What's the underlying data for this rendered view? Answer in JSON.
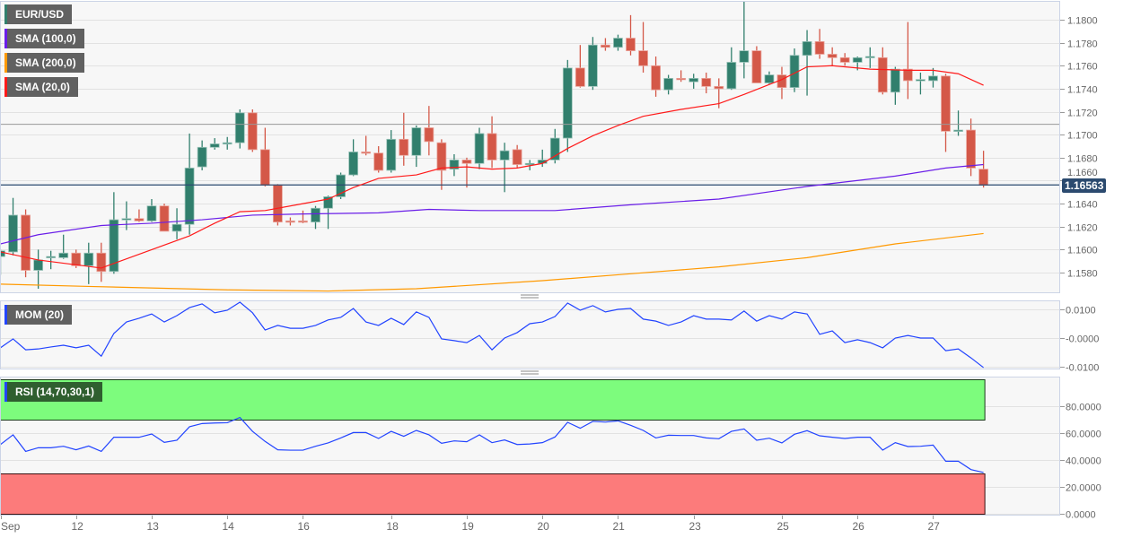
{
  "legend": {
    "symbol": "EUR/USD",
    "sma100": "SMA (100,0)",
    "sma200": "SMA (200,0)",
    "sma20": "SMA (20,0)",
    "mom": "MOM (20)",
    "rsi": "RSI (14,70,30,1)"
  },
  "last_price_label": "1.16563",
  "colors": {
    "up": "#317f6d",
    "down": "#d45848",
    "sma20": "#ff1a1a",
    "sma100": "#6a1ee8",
    "sma200": "#ff9900",
    "indicator": "#2244ff",
    "overbought_zone": "#7dfc7d",
    "oversold_zone": "#fc7b7b",
    "last_price": "#2b4a6f"
  },
  "chart_data": {
    "type": "candlestick",
    "title": "EUR/USD",
    "interval_hours": 4,
    "x_labels": [
      {
        "label": "Sep",
        "index": 0
      },
      {
        "label": "12",
        "index": 6
      },
      {
        "label": "13",
        "index": 12
      },
      {
        "label": "14",
        "index": 18
      },
      {
        "label": "16",
        "index": 24
      },
      {
        "label": "18",
        "index": 31
      },
      {
        "label": "19",
        "index": 37
      },
      {
        "label": "20",
        "index": 43
      },
      {
        "label": "21",
        "index": 49
      },
      {
        "label": "23",
        "index": 55
      },
      {
        "label": "25",
        "index": 62
      },
      {
        "label": "26",
        "index": 68
      },
      {
        "label": "27",
        "index": 74
      }
    ],
    "price_axis": {
      "ylim": [
        1.1566,
        1.1818
      ],
      "ticks": [
        "1.1580",
        "1.1600",
        "1.1620",
        "1.1640",
        "1.1660",
        "1.1680",
        "1.1700",
        "1.1720",
        "1.1740",
        "1.1760",
        "1.1780",
        "1.1800"
      ]
    },
    "last_price": 1.16563,
    "reference_line": 1.1709,
    "candles_ohlc": [
      [
        1.1594,
        1.16,
        1.1578,
        1.1599
      ],
      [
        1.1598,
        1.1645,
        1.1595,
        1.163
      ],
      [
        1.163,
        1.1635,
        1.1576,
        1.1582
      ],
      [
        1.1582,
        1.16,
        1.1566,
        1.1591
      ],
      [
        1.1593,
        1.1599,
        1.1583,
        1.1594
      ],
      [
        1.1593,
        1.1613,
        1.1592,
        1.1597
      ],
      [
        1.1597,
        1.16,
        1.1584,
        1.1586
      ],
      [
        1.1586,
        1.1606,
        1.157,
        1.1597
      ],
      [
        1.1597,
        1.1606,
        1.1572,
        1.1581
      ],
      [
        1.1581,
        1.165,
        1.1579,
        1.1626
      ],
      [
        1.1626,
        1.1642,
        1.1617,
        1.1627
      ],
      [
        1.1627,
        1.1635,
        1.1624,
        1.1625
      ],
      [
        1.1625,
        1.1644,
        1.1624,
        1.1638
      ],
      [
        1.1638,
        1.164,
        1.1616,
        1.1616
      ],
      [
        1.1616,
        1.1636,
        1.1609,
        1.1622
      ],
      [
        1.1622,
        1.1701,
        1.1613,
        1.1671
      ],
      [
        1.1672,
        1.1695,
        1.1669,
        1.1689
      ],
      [
        1.1689,
        1.1697,
        1.1687,
        1.1692
      ],
      [
        1.1692,
        1.1698,
        1.1687,
        1.1693
      ],
      [
        1.1693,
        1.1722,
        1.1688,
        1.1719
      ],
      [
        1.1719,
        1.1722,
        1.1685,
        1.1687
      ],
      [
        1.1687,
        1.1706,
        1.1655,
        1.1656
      ],
      [
        1.1656,
        1.1657,
        1.1621,
        1.1624
      ],
      [
        1.1625,
        1.1628,
        1.1621,
        1.1624
      ],
      [
        1.1625,
        1.1634,
        1.1623,
        1.1624
      ],
      [
        1.1624,
        1.1638,
        1.1618,
        1.1636
      ],
      [
        1.1636,
        1.1647,
        1.1618,
        1.1646
      ],
      [
        1.1646,
        1.1667,
        1.1644,
        1.1665
      ],
      [
        1.1665,
        1.1696,
        1.1664,
        1.1685
      ],
      [
        1.1685,
        1.1699,
        1.1682,
        1.1684
      ],
      [
        1.1684,
        1.169,
        1.1667,
        1.1669
      ],
      [
        1.1669,
        1.1704,
        1.1667,
        1.1696
      ],
      [
        1.1696,
        1.1719,
        1.1673,
        1.1682
      ],
      [
        1.1682,
        1.1708,
        1.1672,
        1.1706
      ],
      [
        1.1706,
        1.1725,
        1.1682,
        1.1694
      ],
      [
        1.1693,
        1.1696,
        1.1652,
        1.1669
      ],
      [
        1.167,
        1.1683,
        1.1664,
        1.1678
      ],
      [
        1.1678,
        1.168,
        1.1654,
        1.1675
      ],
      [
        1.1675,
        1.1706,
        1.167,
        1.1701
      ],
      [
        1.1701,
        1.1716,
        1.1671,
        1.1678
      ],
      [
        1.1678,
        1.1693,
        1.165,
        1.1686
      ],
      [
        1.1687,
        1.1691,
        1.1671,
        1.1674
      ],
      [
        1.1674,
        1.1678,
        1.1669,
        1.1675
      ],
      [
        1.1675,
        1.1687,
        1.1672,
        1.1678
      ],
      [
        1.1678,
        1.1705,
        1.1675,
        1.1697
      ],
      [
        1.1697,
        1.1765,
        1.1685,
        1.1758
      ],
      [
        1.1758,
        1.1778,
        1.1741,
        1.1742
      ],
      [
        1.1742,
        1.1785,
        1.1739,
        1.1778
      ],
      [
        1.1778,
        1.1784,
        1.1773,
        1.1776
      ],
      [
        1.1776,
        1.1787,
        1.1773,
        1.1784
      ],
      [
        1.1784,
        1.1804,
        1.1769,
        1.1773
      ],
      [
        1.1773,
        1.1798,
        1.1754,
        1.176
      ],
      [
        1.176,
        1.1768,
        1.1733,
        1.1739
      ],
      [
        1.1739,
        1.1752,
        1.1735,
        1.1749
      ],
      [
        1.1749,
        1.1756,
        1.1746,
        1.1748
      ],
      [
        1.1746,
        1.1753,
        1.174,
        1.1749
      ],
      [
        1.1749,
        1.1754,
        1.1736,
        1.1742
      ],
      [
        1.1742,
        1.1749,
        1.1723,
        1.174
      ],
      [
        1.174,
        1.1776,
        1.1739,
        1.1763
      ],
      [
        1.1763,
        1.1816,
        1.1749,
        1.1773
      ],
      [
        1.1773,
        1.1777,
        1.1745,
        1.1745
      ],
      [
        1.1745,
        1.1755,
        1.1744,
        1.1752
      ],
      [
        1.1752,
        1.1759,
        1.1731,
        1.1741
      ],
      [
        1.1741,
        1.1775,
        1.1737,
        1.1769
      ],
      [
        1.1769,
        1.1791,
        1.1734,
        1.1781
      ],
      [
        1.1781,
        1.1792,
        1.1766,
        1.177
      ],
      [
        1.177,
        1.1776,
        1.176,
        1.1767
      ],
      [
        1.1767,
        1.1771,
        1.176,
        1.1763
      ],
      [
        1.1763,
        1.1768,
        1.1756,
        1.1767
      ],
      [
        1.1767,
        1.1776,
        1.1758,
        1.1768
      ],
      [
        1.1767,
        1.1776,
        1.1735,
        1.1737
      ],
      [
        1.1737,
        1.1759,
        1.1726,
        1.1757
      ],
      [
        1.1757,
        1.1798,
        1.1731,
        1.1747
      ],
      [
        1.1747,
        1.1754,
        1.1735,
        1.1748
      ],
      [
        1.1747,
        1.1758,
        1.1741,
        1.1751
      ],
      [
        1.1751,
        1.1753,
        1.1685,
        1.1703
      ],
      [
        1.1703,
        1.1721,
        1.1699,
        1.1704
      ],
      [
        1.1704,
        1.1714,
        1.1664,
        1.1671
      ],
      [
        1.167,
        1.1686,
        1.1654,
        1.1656
      ]
    ],
    "sma20": [
      [
        0,
        1.1598
      ],
      [
        3,
        1.1591
      ],
      [
        8,
        1.1584
      ],
      [
        12,
        1.16
      ],
      [
        15,
        1.1612
      ],
      [
        17,
        1.1623
      ],
      [
        19,
        1.1633
      ],
      [
        21,
        1.1634
      ],
      [
        24,
        1.164
      ],
      [
        26,
        1.1644
      ],
      [
        28,
        1.1654
      ],
      [
        30,
        1.1662
      ],
      [
        33,
        1.1665
      ],
      [
        35,
        1.1671
      ],
      [
        37,
        1.1672
      ],
      [
        39,
        1.167
      ],
      [
        41,
        1.1671
      ],
      [
        43,
        1.1675
      ],
      [
        45,
        1.1688
      ],
      [
        47,
        1.1699
      ],
      [
        49,
        1.1708
      ],
      [
        51,
        1.1716
      ],
      [
        54,
        1.1722
      ],
      [
        57,
        1.1727
      ],
      [
        59,
        1.1735
      ],
      [
        62,
        1.1748
      ],
      [
        64,
        1.1759
      ],
      [
        66,
        1.176
      ],
      [
        69,
        1.1757
      ],
      [
        72,
        1.1756
      ],
      [
        74,
        1.1756
      ],
      [
        76,
        1.1753
      ],
      [
        78,
        1.1743
      ]
    ],
    "sma100": [
      [
        0,
        1.1605
      ],
      [
        3,
        1.1613
      ],
      [
        8,
        1.1621
      ],
      [
        12,
        1.1623
      ],
      [
        16,
        1.1626
      ],
      [
        20,
        1.163
      ],
      [
        24,
        1.1631
      ],
      [
        30,
        1.1632
      ],
      [
        34,
        1.1635
      ],
      [
        38,
        1.1634
      ],
      [
        44,
        1.1634
      ],
      [
        50,
        1.1639
      ],
      [
        57,
        1.1644
      ],
      [
        64,
        1.1655
      ],
      [
        71,
        1.1664
      ],
      [
        75,
        1.1671
      ],
      [
        78,
        1.1674
      ]
    ],
    "sma200": [
      [
        0,
        1.157
      ],
      [
        7,
        1.1568
      ],
      [
        18,
        1.1565
      ],
      [
        26,
        1.1564
      ],
      [
        33,
        1.1566
      ],
      [
        43,
        1.1573
      ],
      [
        50,
        1.1579
      ],
      [
        57,
        1.1585
      ],
      [
        64,
        1.1593
      ],
      [
        71,
        1.1605
      ],
      [
        78,
        1.1614
      ]
    ],
    "mom": {
      "ticks": [
        "0.0100",
        "-0.0000",
        "-0.0100"
      ],
      "ylim": [
        -0.0103,
        0.0125
      ],
      "values": [
        -0.0034,
        -0.0003,
        -0.0041,
        -0.0038,
        -0.0031,
        -0.0025,
        -0.0034,
        -0.0025,
        -0.0063,
        0.0016,
        0.0056,
        0.0069,
        0.0084,
        0.0056,
        0.0078,
        0.0106,
        0.0119,
        0.0088,
        0.0097,
        0.0125,
        0.0088,
        0.0028,
        0.0044,
        0.0034,
        0.0034,
        0.0044,
        0.0063,
        0.0072,
        0.0103,
        0.0056,
        0.0044,
        0.0069,
        0.0047,
        0.0091,
        0.0072,
        -0.0003,
        -0.0009,
        -0.0016,
        0.0009,
        -0.0041,
        0.0,
        0.0019,
        0.005,
        0.0056,
        0.0075,
        0.0122,
        0.0097,
        0.0113,
        0.0091,
        0.01,
        0.0103,
        0.0066,
        0.0059,
        0.0044,
        0.0056,
        0.0078,
        0.0066,
        0.0066,
        0.0063,
        0.0094,
        0.0059,
        0.0078,
        0.0066,
        0.0091,
        0.0084,
        0.0013,
        0.0025,
        -0.0016,
        -0.0006,
        -0.0016,
        -0.0034,
        0.0,
        0.0009,
        0.0,
        0.0,
        -0.0044,
        -0.0038,
        -0.0069,
        -0.0103
      ]
    },
    "rsi": {
      "ticks": [
        "80.0000",
        "60.0000",
        "40.0000",
        "20.0000",
        "0.0000"
      ],
      "overbought": 70,
      "oversold": 30,
      "ylim": [
        0,
        100
      ],
      "values": [
        51.5,
        58.7,
        46.4,
        49.1,
        49.1,
        50.2,
        47.6,
        50.4,
        46.4,
        56.9,
        56.9,
        56.9,
        59.3,
        53.1,
        54.7,
        64.7,
        67.1,
        67.5,
        67.7,
        71.6,
        61.3,
        53.8,
        47.6,
        47.3,
        47.3,
        50.2,
        52.7,
        56.4,
        60.4,
        60.4,
        56.0,
        61.3,
        57.6,
        62.0,
        58.7,
        52.4,
        54.2,
        53.6,
        58.7,
        52.9,
        54.9,
        51.5,
        51.9,
        52.9,
        57.1,
        68.0,
        63.6,
        68.7,
        68.2,
        69.1,
        65.8,
        62.0,
        56.4,
        58.4,
        58.2,
        58.2,
        56.4,
        55.8,
        61.3,
        63.1,
        54.7,
        56.2,
        52.7,
        59.1,
        61.8,
        58.0,
        56.9,
        56.0,
        56.9,
        56.9,
        47.3,
        52.9,
        50.0,
        50.2,
        51.1,
        39.1,
        39.1,
        32.9,
        30.7
      ]
    }
  }
}
